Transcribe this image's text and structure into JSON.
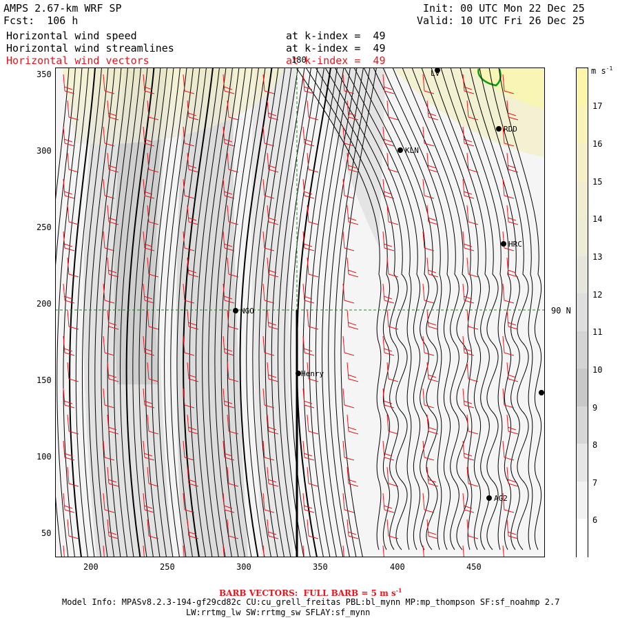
{
  "header": {
    "model_title": "AMPS 2.67-km WRF SP",
    "forecast": "Fcst:  106 h",
    "init": "Init: 00 UTC Mon 22 Dec 25",
    "valid": "Valid: 10 UTC Fri 26 Dec 25"
  },
  "fields": [
    {
      "name": "Horizontal wind speed",
      "level": "at k-index =  49",
      "color": "#000000"
    },
    {
      "name": "Horizontal wind streamlines",
      "level": "at k-index =  49",
      "color": "#000000"
    },
    {
      "name": "Horizontal wind vectors",
      "level": "at k-index =  49",
      "color": "#e8141c"
    }
  ],
  "axes": {
    "x_ticks": [
      "200",
      "250",
      "300",
      "350",
      "400",
      "450"
    ],
    "y_ticks": [
      "350",
      "300",
      "250",
      "200",
      "150",
      "100",
      "50"
    ],
    "meridian_label": "180",
    "parallel_label": "90 N"
  },
  "stations": [
    {
      "id": "LV",
      "label": "LV"
    },
    {
      "id": "RDD",
      "label": "RDD"
    },
    {
      "id": "KLN",
      "label": "KLN"
    },
    {
      "id": "HRC",
      "label": "HRC"
    },
    {
      "id": "NGO",
      "label": "NGO"
    },
    {
      "id": "Henry",
      "label": "Henry"
    },
    {
      "id": "AG2",
      "label": "AG2"
    }
  ],
  "colorbar": {
    "units": "m s",
    "units_exp": "-1",
    "labels": [
      "17",
      "16",
      "15",
      "14",
      "13",
      "12",
      "11",
      "10",
      "9",
      "8",
      "7",
      "6"
    ],
    "colors": [
      "#fbf6a8",
      "#f8f3b8",
      "#f5f0c5",
      "#f0edd0",
      "#ececd8",
      "#e6e6dc",
      "#dedede",
      "#d4d4d4",
      "#c8c8c8",
      "#d6d6d6",
      "#e6e6e6",
      "#f2f2f2",
      "#ffffff"
    ]
  },
  "footer": {
    "barb_note": "BARB VECTORS:  FULL BARB = 5 m s",
    "barb_exp": "-1",
    "model_info": "Model Info: MPASv8.2.3-194-gf29cd82c CU:cu_grell_freitas PBL:bl_mynn MP:mp_thompson SF:sf_noahmp 2.7",
    "model_info2": "LW:rrtmg_lw SW:rrtmg_sw SFLAY:sf_mynn"
  }
}
